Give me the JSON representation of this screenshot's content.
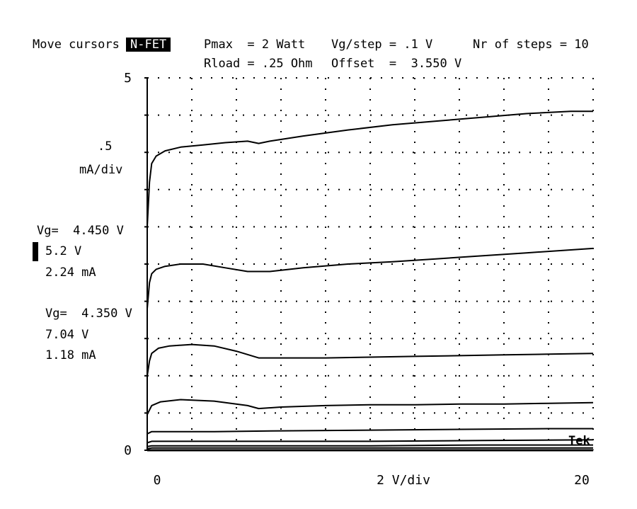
{
  "header": {
    "move_cursors": "Move cursors",
    "device": "N-FET",
    "pmax": "Pmax  = 2 Watt",
    "rload": "Rload = .25 Ohm",
    "vg_step": "Vg/step = .1 V",
    "offset": "Offset  =  3.550 V",
    "nr_steps": "Nr of steps = 10"
  },
  "readouts": {
    "vertical_scale": ".5",
    "vertical_unit": "mA/div",
    "cursor1": {
      "vg": "Vg=  4.450 V",
      "v": "5.2 V",
      "i": "2.24 mA"
    },
    "cursor2": {
      "vg": "Vg=  4.350 V",
      "v": "7.04 V",
      "i": "1.18 mA"
    },
    "brand": "Tek"
  },
  "chart_data": {
    "type": "line",
    "title": "",
    "xlabel": "2 V/div",
    "ylabel": ".5 mA/div",
    "y_tick_labels": [
      {
        "value": 5,
        "label": "5"
      },
      {
        "value": 0,
        "label": "0"
      }
    ],
    "x_tick_labels": [
      {
        "value": 0,
        "label": "0"
      },
      {
        "value": 20,
        "label": "20"
      }
    ],
    "xlim": [
      0,
      20
    ],
    "ylim": [
      0,
      5
    ],
    "grid": true,
    "series": [
      {
        "x": [
          0,
          0.1,
          0.2,
          0.4,
          0.8,
          1.5,
          2.5,
          3.5,
          4.5,
          5.0,
          5.5,
          7,
          9,
          11,
          13,
          15,
          17,
          19,
          20
        ],
        "y": [
          3.0,
          3.6,
          3.85,
          3.95,
          4.02,
          4.07,
          4.1,
          4.13,
          4.15,
          4.12,
          4.15,
          4.22,
          4.3,
          4.37,
          4.42,
          4.47,
          4.52,
          4.55,
          4.55
        ]
      },
      {
        "x": [
          0,
          0.1,
          0.2,
          0.4,
          0.8,
          1.5,
          2.5,
          3.5,
          4.5,
          5.5,
          7,
          9,
          11,
          13,
          15,
          17,
          19,
          20
        ],
        "y": [
          1.9,
          2.25,
          2.37,
          2.43,
          2.47,
          2.5,
          2.5,
          2.45,
          2.4,
          2.4,
          2.45,
          2.5,
          2.53,
          2.57,
          2.61,
          2.65,
          2.69,
          2.71
        ]
      },
      {
        "x": [
          0,
          0.1,
          0.2,
          0.5,
          1,
          2,
          3,
          4,
          5,
          6,
          8,
          10,
          12,
          14,
          16,
          18,
          20
        ],
        "y": [
          1.0,
          1.2,
          1.3,
          1.37,
          1.4,
          1.42,
          1.4,
          1.33,
          1.24,
          1.24,
          1.24,
          1.25,
          1.26,
          1.27,
          1.28,
          1.29,
          1.3
        ]
      },
      {
        "x": [
          0,
          0.2,
          0.6,
          1.5,
          3,
          4.5,
          5,
          6,
          8,
          10,
          12,
          14,
          16,
          18,
          20
        ],
        "y": [
          0.48,
          0.6,
          0.65,
          0.68,
          0.66,
          0.6,
          0.56,
          0.58,
          0.6,
          0.61,
          0.61,
          0.62,
          0.62,
          0.63,
          0.64
        ]
      },
      {
        "x": [
          0,
          0.2,
          1,
          3,
          6,
          10,
          14,
          18,
          20
        ],
        "y": [
          0.22,
          0.25,
          0.25,
          0.25,
          0.26,
          0.27,
          0.28,
          0.29,
          0.29
        ]
      },
      {
        "x": [
          0,
          0.2,
          5,
          10,
          15,
          20
        ],
        "y": [
          0.1,
          0.12,
          0.12,
          0.12,
          0.13,
          0.14
        ]
      },
      {
        "x": [
          0,
          0.2,
          5,
          10,
          15,
          20
        ],
        "y": [
          0.05,
          0.06,
          0.06,
          0.06,
          0.07,
          0.07
        ]
      },
      {
        "x": [
          0,
          0.2,
          5,
          10,
          15,
          20
        ],
        "y": [
          0.02,
          0.03,
          0.03,
          0.03,
          0.03,
          0.03
        ]
      }
    ]
  }
}
